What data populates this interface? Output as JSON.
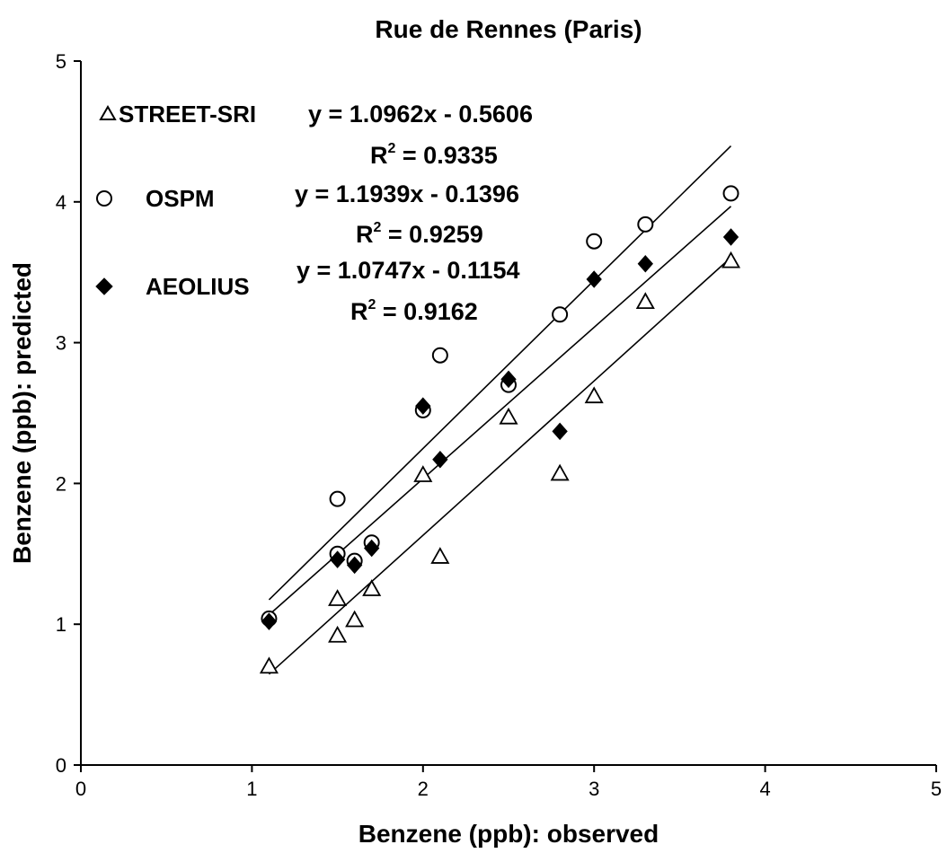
{
  "chart_data": {
    "type": "scatter",
    "title": "Rue de Rennes (Paris)",
    "xlabel": "Benzene (ppb): observed",
    "ylabel": "Benzene (ppb): predicted",
    "xlim": [
      0,
      5
    ],
    "ylim": [
      0,
      5
    ],
    "xticks": [
      "0",
      "1",
      "2",
      "3",
      "4",
      "5"
    ],
    "yticks": [
      "0",
      "1",
      "2",
      "3",
      "4",
      "5"
    ],
    "grid": false,
    "legend_position": "top-left",
    "series": [
      {
        "name": "STREET-SRI",
        "marker": "open-triangle",
        "color": "#000000",
        "x": [
          1.1,
          1.5,
          1.5,
          1.6,
          1.7,
          2.0,
          2.1,
          2.5,
          2.8,
          3.0,
          3.3,
          3.8
        ],
        "y": [
          0.7,
          1.18,
          0.92,
          1.03,
          1.25,
          2.06,
          1.48,
          2.47,
          2.07,
          2.62,
          3.29,
          3.58
        ],
        "fit": {
          "slope": 1.0962,
          "intercept": -0.5606,
          "x_range": [
            1.1,
            3.8
          ]
        },
        "equation": "y = 1.0962x - 0.5606",
        "r2_label": "R",
        "r2_sup": "2",
        "r2_value": " = 0.9335"
      },
      {
        "name": "OSPM",
        "marker": "open-circle",
        "color": "#000000",
        "x": [
          1.1,
          1.5,
          1.5,
          1.6,
          1.7,
          2.0,
          2.1,
          2.5,
          2.8,
          3.0,
          3.3,
          3.8
        ],
        "y": [
          1.04,
          1.89,
          1.5,
          1.45,
          1.58,
          2.52,
          2.91,
          2.7,
          3.2,
          3.72,
          3.84,
          4.06
        ],
        "fit": {
          "slope": 1.1939,
          "intercept": -0.1396,
          "x_range": [
            1.1,
            3.8
          ]
        },
        "equation": "y = 1.1939x - 0.1396",
        "r2_label": "R",
        "r2_sup": "2",
        "r2_value": " = 0.9259"
      },
      {
        "name": "AEOLIUS",
        "marker": "filled-diamond",
        "color": "#000000",
        "x": [
          1.1,
          1.5,
          1.6,
          1.7,
          2.0,
          2.1,
          2.5,
          2.8,
          3.0,
          3.3,
          3.8
        ],
        "y": [
          1.02,
          1.46,
          1.42,
          1.54,
          2.55,
          2.17,
          2.74,
          2.37,
          3.45,
          3.56,
          3.75
        ],
        "fit": {
          "slope": 1.0747,
          "intercept": -0.1154,
          "x_range": [
            1.1,
            3.8
          ]
        },
        "equation": "y = 1.0747x - 0.1154",
        "r2_label": "R",
        "r2_sup": "2",
        "r2_value": " = 0.9162"
      }
    ]
  }
}
